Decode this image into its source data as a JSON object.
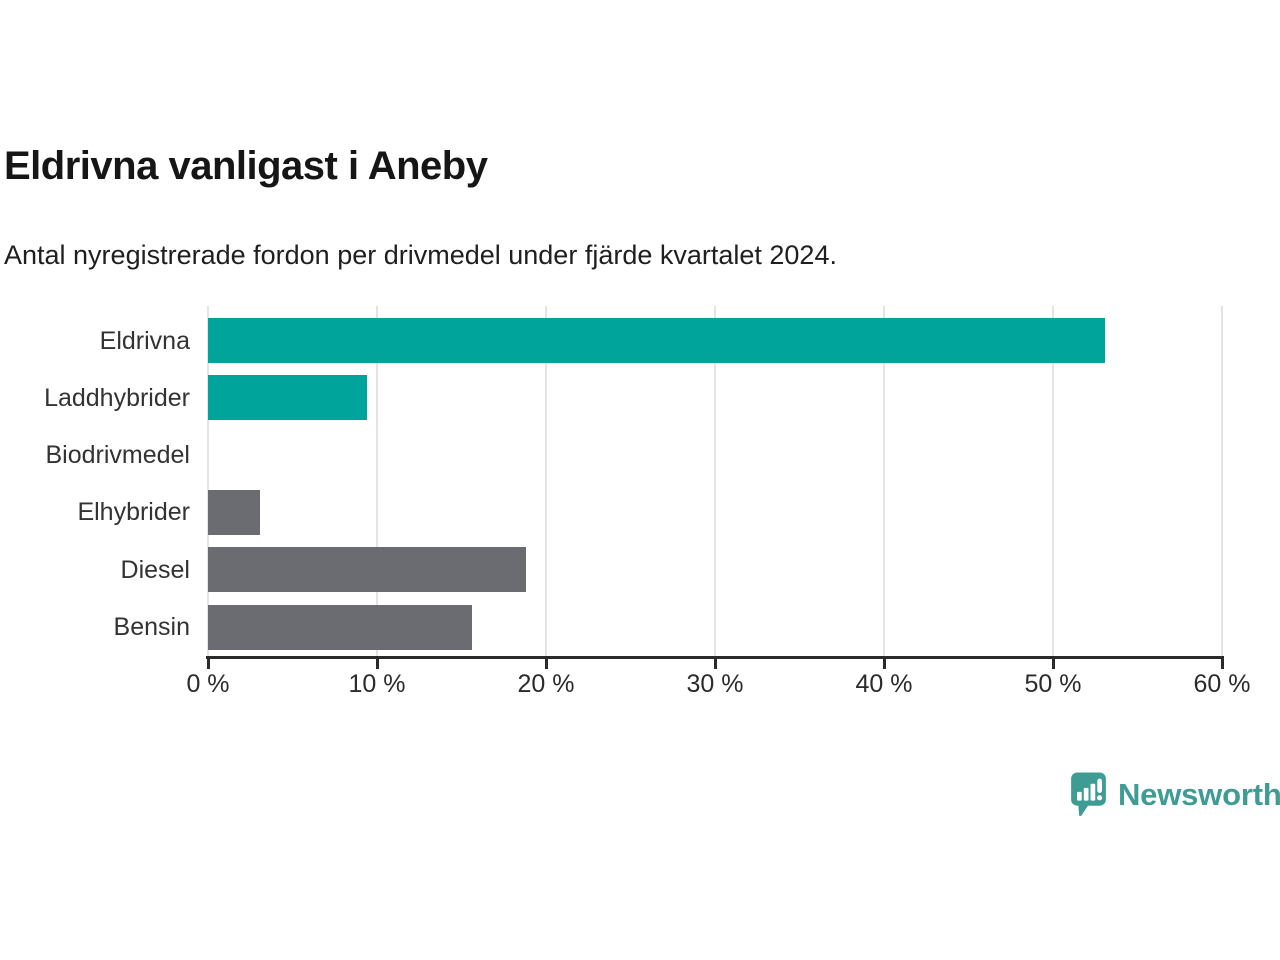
{
  "header": {
    "title": "Eldrivna vanligast i Aneby",
    "subtitle": "Antal nyregistrerade fordon per drivmedel under fjärde kvartalet 2024."
  },
  "chart_data": {
    "type": "bar",
    "orientation": "horizontal",
    "title": "Eldrivna vanligast i Aneby",
    "subtitle": "Antal nyregistrerade fordon per drivmedel under fjärde kvartalet 2024.",
    "categories": [
      "Eldrivna",
      "Laddhybrider",
      "Biodrivmedel",
      "Elhybrider",
      "Diesel",
      "Bensin"
    ],
    "values": [
      53.1,
      9.4,
      0,
      3.1,
      18.8,
      15.6
    ],
    "unit": "%",
    "bar_colors": [
      "#00A49A",
      "#00A49A",
      "#00A49A",
      "#6B6B72",
      "#6B6B72",
      "#6B6B72"
    ],
    "xlim": [
      0,
      60
    ],
    "x_ticks": [
      0,
      10,
      20,
      30,
      40,
      50,
      60
    ],
    "x_tick_labels": [
      "0 %",
      "10 %",
      "20 %",
      "30 %",
      "40 %",
      "50 %",
      "60 %"
    ],
    "grid": "vertical-gridlines-on",
    "legend": "none"
  },
  "colors": {
    "accent_teal": "#00A49A",
    "neutral_gray": "#6B6B72",
    "gridline": "#e4e4e4",
    "axis": "#2b2b2b",
    "logo_teal": "#3E9C95"
  },
  "branding": {
    "logo_text": "Newsworthy",
    "logo_icon": "speech-bubble-bar-chart-icon"
  }
}
